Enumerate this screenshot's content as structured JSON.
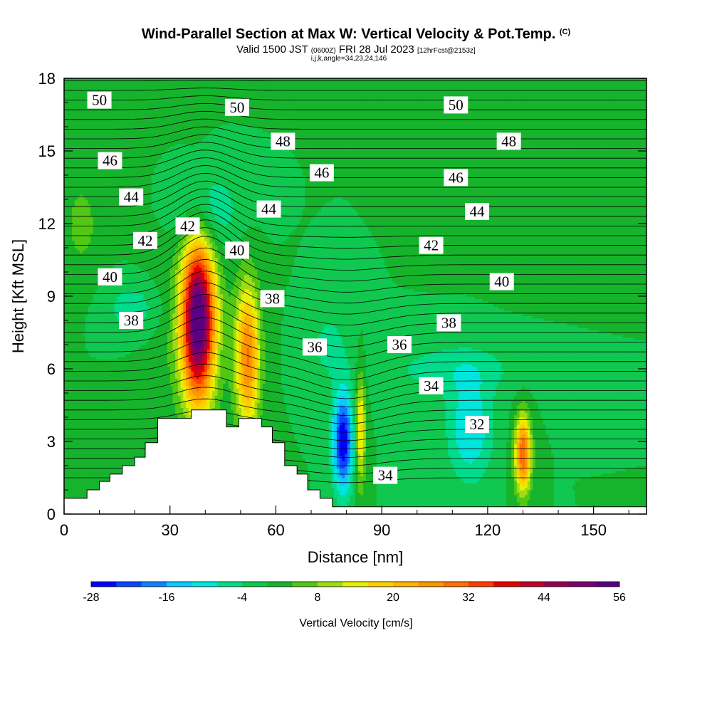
{
  "header": {
    "title": "Wind-Parallel Section at Max W: Vertical Velocity & Pot.Temp.",
    "copyright": "(C)",
    "valid_prefix": "Valid 1500 JST",
    "valid_utc": "(0600Z)",
    "valid_date": "FRI 28 Jul 2023",
    "forecast": "[12hrFcst@2153z]",
    "indices": "i,j,k,angle=34,23,24,146"
  },
  "chart_data": {
    "type": "heatmap",
    "title": "Wind-Parallel Section at Max W: Vertical Velocity & Pot.Temp.",
    "xlabel": "Distance [nm]",
    "ylabel": "Height [Kft MSL]",
    "xlim": [
      0,
      165
    ],
    "ylim": [
      0,
      18
    ],
    "x_ticks": [
      "0",
      "30",
      "60",
      "90",
      "120",
      "150"
    ],
    "y_ticks": [
      "0",
      "3",
      "6",
      "9",
      "12",
      "15",
      "18"
    ],
    "colorbar": {
      "label": "Vertical Velocity [cm/s]",
      "min": -28,
      "max": 56,
      "step": 4,
      "tick_labels": [
        "-28",
        "-16",
        "-4",
        "8",
        "20",
        "32",
        "44",
        "56"
      ],
      "colors": [
        "#0000ff",
        "#0a46ff",
        "#0e82ff",
        "#0cc8ff",
        "#00e6dc",
        "#00dc8c",
        "#10c850",
        "#16b42c",
        "#50c814",
        "#a0dc14",
        "#e6f000",
        "#fad200",
        "#ffb400",
        "#ff9600",
        "#ff6e00",
        "#ff3c00",
        "#e60000",
        "#be0028",
        "#960050",
        "#7d006e",
        "#5a0082"
      ]
    },
    "vertical_velocity_features": [
      {
        "label": "max updraft",
        "x_nm": 38,
        "height_kft": 8,
        "value_cm_s": 56
      },
      {
        "label": "secondary updraft",
        "x_nm": 52,
        "height_kft": 6.5,
        "value_cm_s": 28
      },
      {
        "label": "downdraft",
        "x_nm": 79,
        "height_kft": 3,
        "value_cm_s": -28
      },
      {
        "label": "updraft",
        "x_nm": 84,
        "height_kft": 3.5,
        "value_cm_s": 18
      },
      {
        "label": "updraft",
        "x_nm": 130,
        "height_kft": 2.5,
        "value_cm_s": 32
      },
      {
        "label": "downdraft",
        "x_nm": 115,
        "height_kft": 3.5,
        "value_cm_s": -12
      }
    ],
    "theta_contour_labels": [
      {
        "text": "50",
        "x_nm": 10,
        "height_kft": 17.1
      },
      {
        "text": "50",
        "x_nm": 49,
        "height_kft": 16.8
      },
      {
        "text": "50",
        "x_nm": 111,
        "height_kft": 16.9
      },
      {
        "text": "48",
        "x_nm": 62,
        "height_kft": 15.4
      },
      {
        "text": "48",
        "x_nm": 126,
        "height_kft": 15.4
      },
      {
        "text": "46",
        "x_nm": 13,
        "height_kft": 14.6
      },
      {
        "text": "46",
        "x_nm": 73,
        "height_kft": 14.1
      },
      {
        "text": "46",
        "x_nm": 111,
        "height_kft": 13.9
      },
      {
        "text": "44",
        "x_nm": 19,
        "height_kft": 13.1
      },
      {
        "text": "44",
        "x_nm": 58,
        "height_kft": 12.6
      },
      {
        "text": "44",
        "x_nm": 117,
        "height_kft": 12.5
      },
      {
        "text": "42",
        "x_nm": 23,
        "height_kft": 11.3
      },
      {
        "text": "42",
        "x_nm": 35,
        "height_kft": 11.9
      },
      {
        "text": "42",
        "x_nm": 104,
        "height_kft": 11.1
      },
      {
        "text": "40",
        "x_nm": 13,
        "height_kft": 9.8
      },
      {
        "text": "40",
        "x_nm": 49,
        "height_kft": 10.9
      },
      {
        "text": "40",
        "x_nm": 124,
        "height_kft": 9.6
      },
      {
        "text": "38",
        "x_nm": 19,
        "height_kft": 8.0
      },
      {
        "text": "38",
        "x_nm": 59,
        "height_kft": 8.9
      },
      {
        "text": "38",
        "x_nm": 109,
        "height_kft": 7.9
      },
      {
        "text": "36",
        "x_nm": 71,
        "height_kft": 6.9
      },
      {
        "text": "36",
        "x_nm": 95,
        "height_kft": 7.0
      },
      {
        "text": "34",
        "x_nm": 104,
        "height_kft": 5.3
      },
      {
        "text": "34",
        "x_nm": 91,
        "height_kft": 1.6
      },
      {
        "text": "32",
        "x_nm": 117,
        "height_kft": 3.7
      }
    ],
    "terrain_kft": [
      {
        "x_nm": 0,
        "h": 0.65
      },
      {
        "x_nm": 6.5,
        "h": 0.65
      },
      {
        "x_nm": 6.5,
        "h": 1.0
      },
      {
        "x_nm": 10,
        "h": 1.0
      },
      {
        "x_nm": 10,
        "h": 1.35
      },
      {
        "x_nm": 13,
        "h": 1.35
      },
      {
        "x_nm": 13,
        "h": 1.65
      },
      {
        "x_nm": 16.5,
        "h": 1.65
      },
      {
        "x_nm": 16.5,
        "h": 2.0
      },
      {
        "x_nm": 20,
        "h": 2.0
      },
      {
        "x_nm": 20,
        "h": 2.35
      },
      {
        "x_nm": 23,
        "h": 2.35
      },
      {
        "x_nm": 23,
        "h": 2.95
      },
      {
        "x_nm": 26.5,
        "h": 2.95
      },
      {
        "x_nm": 26.5,
        "h": 3.95
      },
      {
        "x_nm": 36,
        "h": 3.95
      },
      {
        "x_nm": 36,
        "h": 4.3
      },
      {
        "x_nm": 46,
        "h": 4.3
      },
      {
        "x_nm": 46,
        "h": 3.6
      },
      {
        "x_nm": 49.5,
        "h": 3.6
      },
      {
        "x_nm": 49.5,
        "h": 3.95
      },
      {
        "x_nm": 56,
        "h": 3.95
      },
      {
        "x_nm": 56,
        "h": 3.6
      },
      {
        "x_nm": 59,
        "h": 3.6
      },
      {
        "x_nm": 59,
        "h": 2.95
      },
      {
        "x_nm": 62.5,
        "h": 2.95
      },
      {
        "x_nm": 62.5,
        "h": 2.0
      },
      {
        "x_nm": 66,
        "h": 2.0
      },
      {
        "x_nm": 66,
        "h": 1.65
      },
      {
        "x_nm": 69,
        "h": 1.65
      },
      {
        "x_nm": 69,
        "h": 1.0
      },
      {
        "x_nm": 72.5,
        "h": 1.0
      },
      {
        "x_nm": 72.5,
        "h": 0.65
      },
      {
        "x_nm": 76,
        "h": 0.65
      },
      {
        "x_nm": 76,
        "h": 0.3
      },
      {
        "x_nm": 165,
        "h": 0.3
      }
    ]
  }
}
